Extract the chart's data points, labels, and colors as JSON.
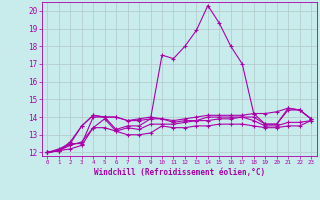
{
  "title": "",
  "xlabel": "Windchill (Refroidissement éolien,°C)",
  "xlim": [
    -0.5,
    23.5
  ],
  "ylim": [
    11.8,
    20.5
  ],
  "yticks": [
    12,
    13,
    14,
    15,
    16,
    17,
    18,
    19,
    20
  ],
  "xticks": [
    0,
    1,
    2,
    3,
    4,
    5,
    6,
    7,
    8,
    9,
    10,
    11,
    12,
    13,
    14,
    15,
    16,
    17,
    18,
    19,
    20,
    21,
    22,
    23
  ],
  "bg_color": "#c8ecec",
  "line_color": "#aa00aa",
  "grid_color": "#b0c8c8",
  "lines": [
    [
      12.0,
      12.1,
      12.2,
      12.4,
      13.4,
      13.4,
      13.2,
      13.0,
      13.0,
      13.1,
      13.5,
      13.4,
      13.4,
      13.5,
      13.5,
      13.6,
      13.6,
      13.6,
      13.5,
      13.4,
      13.4,
      13.5,
      13.5,
      13.8
    ],
    [
      12.0,
      12.1,
      12.4,
      12.6,
      13.4,
      13.9,
      13.2,
      13.4,
      13.3,
      13.6,
      13.6,
      13.6,
      13.7,
      13.8,
      13.8,
      13.9,
      13.9,
      14.0,
      13.8,
      13.5,
      13.5,
      13.7,
      13.7,
      13.8
    ],
    [
      12.0,
      12.2,
      12.5,
      13.5,
      14.1,
      14.0,
      14.0,
      13.8,
      13.8,
      13.9,
      13.9,
      13.7,
      13.8,
      13.8,
      14.0,
      14.0,
      14.0,
      14.0,
      14.0,
      13.6,
      13.6,
      14.4,
      14.4,
      13.9
    ],
    [
      12.0,
      12.1,
      12.6,
      13.5,
      14.1,
      14.0,
      14.0,
      13.8,
      13.9,
      14.0,
      13.9,
      13.8,
      13.9,
      14.0,
      14.1,
      14.1,
      14.1,
      14.1,
      14.2,
      13.6,
      13.6,
      14.5,
      14.4,
      13.9
    ],
    [
      12.0,
      12.1,
      12.5,
      12.5,
      14.0,
      14.0,
      13.3,
      13.5,
      13.5,
      13.9,
      17.5,
      17.3,
      18.0,
      18.9,
      20.3,
      19.3,
      18.0,
      17.0,
      14.2,
      14.2,
      14.3,
      14.5,
      14.4,
      13.9
    ]
  ]
}
